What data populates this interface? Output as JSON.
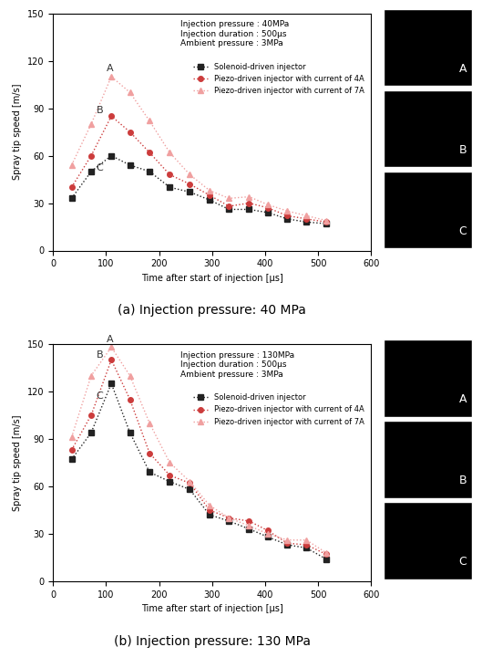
{
  "chart_data": [
    {
      "type": "line",
      "title": "(a) Injection pressure: 40 MPa",
      "x_label": "Time after start of injection [μs]",
      "y_label": "Spray tip speed [m/s]",
      "annotations": [
        {
          "text": "Injection pressure : 40MPa"
        },
        {
          "text": "Injection duration : 500μs"
        },
        {
          "text": "Ambient pressure : 3MPa"
        },
        {
          "text": "A",
          "x": 110,
          "y": 110
        },
        {
          "text": "B",
          "x": 110,
          "y": 85
        },
        {
          "text": "C",
          "x": 110,
          "y": 60
        }
      ],
      "panel_labels": [
        "A",
        "B",
        "C"
      ],
      "x": [
        35,
        72,
        110,
        145,
        182,
        220,
        258,
        295,
        332,
        370,
        405,
        442,
        478,
        515
      ],
      "series": [
        {
          "name": "Solenoid-driven injector",
          "color": "#222222",
          "marker": "square",
          "values": [
            33,
            50,
            60,
            54,
            50,
            40,
            37,
            32,
            26,
            26,
            24,
            20,
            18,
            17
          ]
        },
        {
          "name": "Piezo-driven injector with current of 4A",
          "color": "#cc3c3c",
          "marker": "circle",
          "values": [
            40,
            60,
            85,
            75,
            62,
            48,
            42,
            35,
            28,
            30,
            27,
            22,
            20,
            18
          ]
        },
        {
          "name": "Piezo-driven injector with current of 7A",
          "color": "#f0a0a0",
          "marker": "triangle",
          "values": [
            54,
            80,
            110,
            100,
            82,
            62,
            48,
            38,
            33,
            34,
            29,
            25,
            22,
            19
          ]
        }
      ],
      "xlim": [
        0,
        600
      ],
      "xticks": [
        0,
        100,
        200,
        300,
        400,
        500,
        600
      ],
      "ylim": [
        0,
        150
      ],
      "yticks": [
        0,
        30,
        60,
        90,
        120,
        150
      ],
      "legend": "upper right",
      "grid": false
    },
    {
      "type": "line",
      "title": "(b) Injection pressure: 130 MPa",
      "x_label": "Time after start of injection [μs]",
      "y_label": "Spray tip speed [m/s]",
      "annotations": [
        {
          "text": "Injection pressure : 130MPa"
        },
        {
          "text": "Injection duration : 500μs"
        },
        {
          "text": "Ambient pressure : 3MPa"
        },
        {
          "text": "A",
          "x": 110,
          "y": 148
        },
        {
          "text": "B",
          "x": 110,
          "y": 140
        },
        {
          "text": "C",
          "x": 110,
          "y": 125
        }
      ],
      "panel_labels": [
        "A",
        "B",
        "C"
      ],
      "x": [
        35,
        72,
        110,
        145,
        182,
        220,
        258,
        295,
        332,
        370,
        405,
        442,
        478,
        515
      ],
      "series": [
        {
          "name": "Solenoid-driven injector",
          "color": "#222222",
          "marker": "square",
          "values": [
            77,
            94,
            125,
            94,
            69,
            63,
            58,
            42,
            38,
            33,
            28,
            23,
            21,
            14
          ]
        },
        {
          "name": "Piezo-driven injector with current of 4A",
          "color": "#cc3c3c",
          "marker": "circle",
          "values": [
            83,
            105,
            140,
            115,
            81,
            67,
            62,
            45,
            40,
            38,
            32,
            24,
            23,
            17
          ]
        },
        {
          "name": "Piezo-driven injector with current of 7A",
          "color": "#f0a0a0",
          "marker": "triangle",
          "values": [
            91,
            130,
            148,
            130,
            100,
            75,
            63,
            48,
            40,
            35,
            30,
            26,
            26,
            18
          ]
        }
      ],
      "xlim": [
        0,
        600
      ],
      "xticks": [
        0,
        100,
        200,
        300,
        400,
        500,
        600
      ],
      "ylim": [
        0,
        150
      ],
      "yticks": [
        0,
        30,
        60,
        90,
        120,
        150
      ],
      "legend": "upper right",
      "grid": false
    }
  ]
}
